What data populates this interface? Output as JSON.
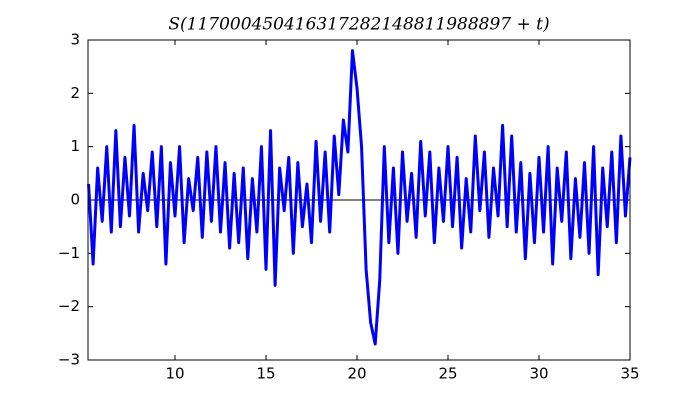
{
  "chart_data": {
    "type": "line",
    "title": "S(117000450416317282148811988897 + t)",
    "x": [
      5.25,
      5.5,
      5.75,
      6,
      6.25,
      6.5,
      6.75,
      7,
      7.25,
      7.5,
      7.75,
      8,
      8.25,
      8.5,
      8.75,
      9,
      9.25,
      9.5,
      9.75,
      10,
      10.25,
      10.5,
      10.75,
      11,
      11.25,
      11.5,
      11.75,
      12,
      12.25,
      12.5,
      12.75,
      13,
      13.25,
      13.5,
      13.75,
      14,
      14.25,
      14.5,
      14.75,
      15,
      15.25,
      15.5,
      15.75,
      16,
      16.25,
      16.5,
      16.75,
      17,
      17.25,
      17.5,
      17.75,
      18,
      18.25,
      18.5,
      18.75,
      19,
      19.25,
      19.5,
      19.75,
      20,
      20.25,
      20.5,
      20.75,
      21,
      21.25,
      21.5,
      21.75,
      22,
      22.25,
      22.5,
      22.75,
      23,
      23.25,
      23.5,
      23.75,
      24,
      24.25,
      24.5,
      24.75,
      25,
      25.25,
      25.5,
      25.75,
      26,
      26.25,
      26.5,
      26.75,
      27,
      27.25,
      27.5,
      27.75,
      28,
      28.25,
      28.5,
      28.75,
      29,
      29.25,
      29.5,
      29.75,
      30,
      30.25,
      30.5,
      30.75,
      31,
      31.25,
      31.5,
      31.75,
      32,
      32.25,
      32.5,
      32.75,
      33,
      33.25,
      33.5,
      33.75,
      34,
      34.25,
      34.5,
      34.75,
      35
    ],
    "series": [
      {
        "color": "#0000ff",
        "values": [
          0.3,
          -1.2,
          0.6,
          -0.4,
          1.0,
          -0.6,
          1.3,
          -0.5,
          0.8,
          -0.3,
          1.4,
          -0.6,
          0.5,
          -0.2,
          0.9,
          -0.5,
          1.0,
          -1.2,
          0.7,
          -0.3,
          1.0,
          -0.8,
          0.4,
          -0.2,
          0.8,
          -0.7,
          0.9,
          -0.4,
          1.0,
          -0.6,
          0.7,
          -0.9,
          0.5,
          -0.8,
          0.6,
          -1.1,
          0.4,
          -0.6,
          1.0,
          -1.3,
          1.3,
          -1.6,
          0.6,
          -0.2,
          0.8,
          -1.0,
          0.7,
          -0.5,
          0.3,
          -0.8,
          1.1,
          -0.4,
          0.9,
          -0.6,
          1.2,
          0.1,
          1.5,
          0.9,
          2.8,
          2.1,
          1.0,
          -1.3,
          -2.3,
          -2.7,
          -1.5,
          1.0,
          -0.8,
          0.6,
          -1.0,
          0.9,
          -0.4,
          0.5,
          -0.7,
          1.1,
          -0.3,
          0.9,
          -0.8,
          0.6,
          -0.4,
          1.0,
          -0.5,
          0.8,
          -0.9,
          0.4,
          -0.6,
          1.2,
          -0.2,
          0.9,
          -0.7,
          0.6,
          -0.3,
          1.4,
          -0.5,
          1.2,
          -0.6,
          0.7,
          -1.1,
          0.5,
          -0.8,
          0.8,
          -0.6,
          1.0,
          -1.2,
          0.6,
          -0.4,
          0.9,
          -1.1,
          0.4,
          -0.7,
          0.7,
          -1.0,
          1.0,
          -1.4,
          0.6,
          -0.5,
          0.9,
          -0.8,
          1.2,
          -0.3,
          0.8
        ]
      }
    ],
    "hline": 0,
    "xlim": [
      5.22,
      35
    ],
    "xticks": [
      10,
      15,
      20,
      25,
      30,
      35
    ],
    "ylim": [
      -3,
      3
    ],
    "yticks": [
      {
        "value": -3,
        "label": "−3"
      },
      {
        "value": -2,
        "label": "−2"
      },
      {
        "value": -1,
        "label": "−1"
      },
      0,
      1,
      2,
      3
    ]
  }
}
